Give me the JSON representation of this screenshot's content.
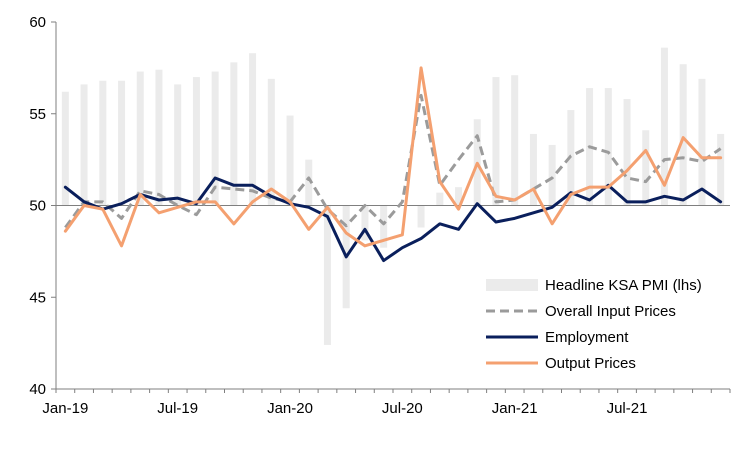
{
  "chart_data": {
    "type": "bar+line",
    "title": "",
    "xlabel": "",
    "ylabel": "",
    "ylim": [
      40,
      60
    ],
    "yticks": [
      40,
      45,
      50,
      55,
      60
    ],
    "baseline": 50,
    "grid": false,
    "legend_position": "bottom-right",
    "x": [
      "Jan-19",
      "Feb-19",
      "Mar-19",
      "Apr-19",
      "May-19",
      "Jun-19",
      "Jul-19",
      "Aug-19",
      "Sep-19",
      "Oct-19",
      "Nov-19",
      "Dec-19",
      "Jan-20",
      "Feb-20",
      "Mar-20",
      "Apr-20",
      "May-20",
      "Jun-20",
      "Jul-20",
      "Aug-20",
      "Sep-20",
      "Oct-20",
      "Nov-20",
      "Dec-20",
      "Jan-21",
      "Feb-21",
      "Mar-21",
      "Apr-21",
      "May-21",
      "Jun-21",
      "Jul-21",
      "Aug-21",
      "Sep-21",
      "Oct-21",
      "Nov-21",
      "Dec-21"
    ],
    "xtick_labels": [
      {
        "label": "Jan-19",
        "index": 0
      },
      {
        "label": "Jul-19",
        "index": 6
      },
      {
        "label": "Jan-20",
        "index": 12
      },
      {
        "label": "Jul-20",
        "index": 18
      },
      {
        "label": "Jan-21",
        "index": 24
      },
      {
        "label": "Jul-21",
        "index": 30
      }
    ],
    "series": [
      {
        "name": "Headline KSA PMI (lhs)",
        "kind": "bar",
        "color": "#ebebeb",
        "values": [
          56.2,
          56.6,
          56.8,
          56.8,
          57.3,
          57.4,
          56.6,
          57.0,
          57.3,
          57.8,
          58.3,
          56.9,
          54.9,
          52.5,
          42.4,
          44.4,
          48.1,
          47.7,
          50.0,
          48.8,
          50.7,
          51.0,
          54.7,
          57.0,
          57.1,
          53.9,
          53.3,
          55.2,
          56.4,
          56.4,
          55.8,
          54.1,
          58.6,
          57.7,
          56.9,
          53.9
        ]
      },
      {
        "name": "Overall Input Prices",
        "kind": "line",
        "dash": true,
        "color": "#9b9b9b",
        "values": [
          48.8,
          50.2,
          50.2,
          49.3,
          50.8,
          50.6,
          50.0,
          49.5,
          51.0,
          50.9,
          50.8,
          50.4,
          50.2,
          51.5,
          49.8,
          48.9,
          50.0,
          49.0,
          50.2,
          56.0,
          51.1,
          52.5,
          53.8,
          50.2,
          50.3,
          50.9,
          51.5,
          52.7,
          53.2,
          52.9,
          51.5,
          51.3,
          52.5,
          52.6,
          52.4,
          53.1
        ]
      },
      {
        "name": "Employment",
        "kind": "line",
        "dash": false,
        "color": "#0a1f5c",
        "values": [
          51.0,
          50.2,
          49.8,
          50.1,
          50.6,
          50.3,
          50.4,
          50.1,
          51.5,
          51.1,
          51.1,
          50.5,
          50.1,
          49.9,
          49.4,
          47.2,
          48.7,
          47.0,
          47.7,
          48.2,
          49.0,
          48.7,
          50.1,
          49.1,
          49.3,
          49.6,
          49.9,
          50.7,
          50.3,
          51.1,
          50.2,
          50.2,
          50.5,
          50.3,
          50.9,
          50.2
        ]
      },
      {
        "name": "Output Prices",
        "kind": "line",
        "dash": false,
        "color": "#f4a070",
        "values": [
          48.6,
          50.0,
          49.8,
          47.8,
          50.6,
          49.6,
          49.9,
          50.2,
          50.2,
          49.0,
          50.2,
          50.9,
          50.2,
          48.7,
          49.9,
          48.5,
          47.8,
          48.1,
          48.4,
          57.5,
          51.3,
          49.8,
          52.3,
          50.5,
          50.3,
          50.9,
          49.0,
          50.6,
          51.0,
          51.0,
          51.9,
          53.0,
          51.1,
          53.7,
          52.6,
          52.6
        ]
      }
    ]
  }
}
